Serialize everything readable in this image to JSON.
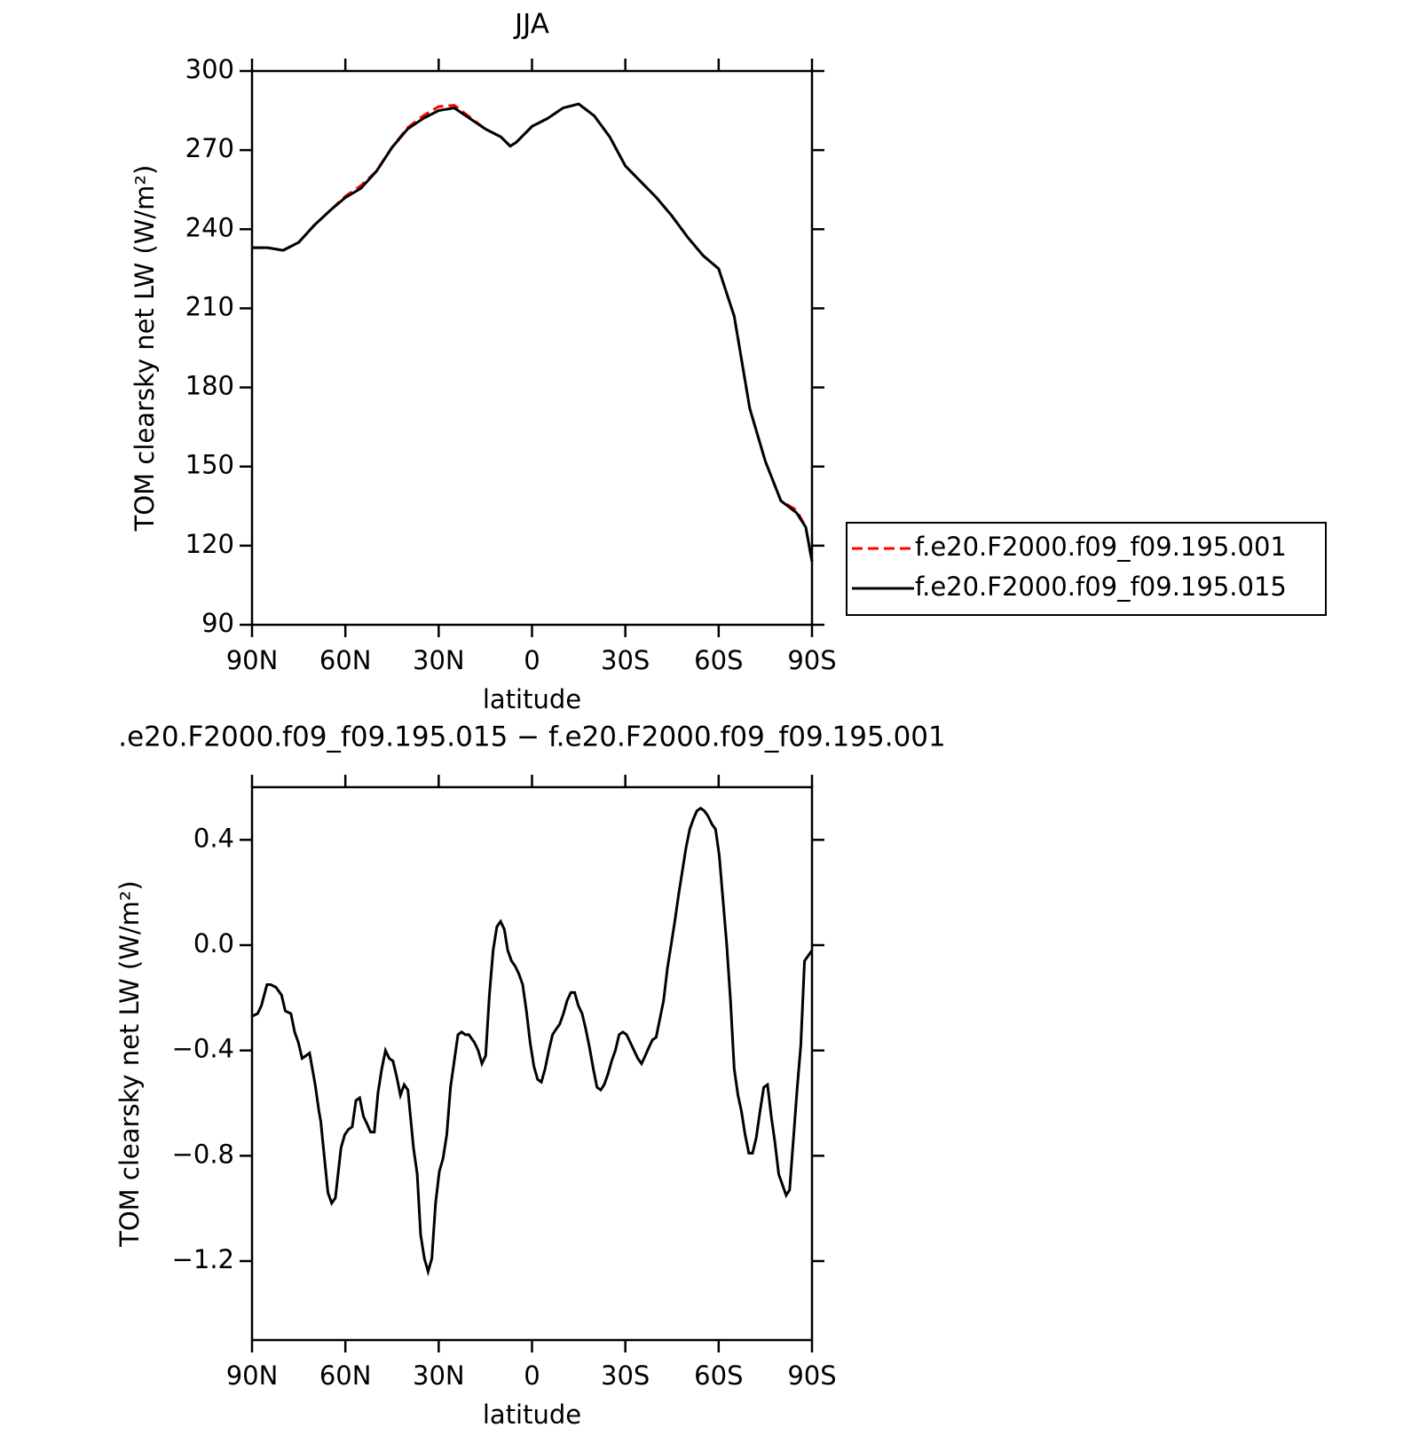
{
  "chart_data": [
    {
      "type": "line",
      "title": "JJA",
      "xlabel": "latitude",
      "ylabel": "TOM clearsky net LW (W/m²)",
      "x": [
        90,
        85,
        80,
        75,
        70,
        65,
        60,
        55,
        50,
        45,
        40,
        35,
        30,
        25,
        20,
        15,
        10,
        7,
        5,
        0,
        -5,
        -10,
        -15,
        -20,
        -25,
        -30,
        -35,
        -40,
        -45,
        -50,
        -55,
        -60,
        -65,
        -70,
        -75,
        -80,
        -85,
        -88,
        -90
      ],
      "series": [
        {
          "name": "f.e20.F2000.f09_f09.195.001",
          "color": "#ff0000",
          "style": "dashed",
          "values": [
            233,
            233,
            232,
            235,
            241.5,
            247,
            252.5,
            256.5,
            262,
            271,
            278.5,
            283,
            286.5,
            287,
            282.5,
            278,
            275,
            271.5,
            273,
            279,
            282,
            286,
            287.5,
            283,
            275,
            264,
            258,
            252,
            245,
            237,
            230,
            225,
            207,
            172,
            152,
            137,
            133.5,
            127,
            114
          ]
        },
        {
          "name": "f.e20.F2000.f09_f09.195.015",
          "color": "#000000",
          "style": "solid",
          "values": [
            233,
            233,
            232,
            235,
            241.5,
            247,
            252,
            255.5,
            262,
            271,
            278,
            282,
            285,
            286,
            282,
            278,
            275,
            271.5,
            273,
            279,
            282,
            286,
            287.5,
            283,
            275,
            264,
            258,
            252,
            245,
            237,
            230,
            225,
            207,
            172,
            152,
            137,
            132.5,
            127,
            114
          ]
        }
      ],
      "xlim": [
        90,
        -90
      ],
      "xticks": [
        {
          "value": 90,
          "label": "90N"
        },
        {
          "value": 60,
          "label": "60N"
        },
        {
          "value": 30,
          "label": "30N"
        },
        0,
        {
          "value": -30,
          "label": "30S"
        },
        {
          "value": -60,
          "label": "60S"
        },
        {
          "value": -90,
          "label": "90S"
        }
      ],
      "ylim": [
        90,
        300
      ],
      "yticks": [
        90,
        120,
        150,
        180,
        210,
        240,
        270,
        300
      ],
      "legend": "outside-right"
    },
    {
      "type": "line",
      "title": ".e20.F2000.f09_f09.195.015 − f.e20.F2000.f09_f09.195.001",
      "xlabel": "latitude",
      "ylabel": "TOM clearsky net LW (W/m²)",
      "x": [
        90,
        88.2,
        87.0,
        85.2,
        84.0,
        82.3,
        80.5,
        79.3,
        77.5,
        76.3,
        75.1,
        73.9,
        72.7,
        71.5,
        69.7,
        68.5,
        67.9,
        66.8,
        65.6,
        64.4,
        63.2,
        61.4,
        60.2,
        59.0,
        57.8,
        56.6,
        55.4,
        54.2,
        53.0,
        51.9,
        50.7,
        49.5,
        48.3,
        47.1,
        45.9,
        44.7,
        43.5,
        42.3,
        41.1,
        39.9,
        38.1,
        36.9,
        35.8,
        34.6,
        33.4,
        32.2,
        31.0,
        29.8,
        28.6,
        27.4,
        26.2,
        25.0,
        23.8,
        22.6,
        21.5,
        20.3,
        18.5,
        17.3,
        16.1,
        14.9,
        13.7,
        12.5,
        11.3,
        10.1,
        8.9,
        7.8,
        6.6,
        5.4,
        4.2,
        3.0,
        1.8,
        0.6,
        -0.6,
        -1.8,
        -3.0,
        -4.2,
        -5.4,
        -6.6,
        -7.7,
        -8.9,
        -10.1,
        -11.3,
        -12.5,
        -13.7,
        -14.9,
        -16.1,
        -17.3,
        -18.5,
        -19.7,
        -20.9,
        -22.1,
        -23.2,
        -24.4,
        -25.6,
        -26.8,
        -28.0,
        -29.2,
        -30.4,
        -31.6,
        -32.8,
        -34.0,
        -35.2,
        -36.4,
        -37.5,
        -38.7,
        -39.9,
        -41.1,
        -42.3,
        -43.5,
        -44.7,
        -45.9,
        -47.1,
        -48.3,
        -49.5,
        -50.7,
        -51.9,
        -53.0,
        -54.2,
        -55.4,
        -56.6,
        -57.8,
        -59.0,
        -60.2,
        -61.4,
        -62.6,
        -63.8,
        -65.0,
        -66.2,
        -67.3,
        -68.5,
        -69.7,
        -70.9,
        -72.1,
        -73.3,
        -74.5,
        -75.7,
        -76.9,
        -78.1,
        -79.3,
        -80.5,
        -81.7,
        -82.8,
        -84.0,
        -85.2,
        -86.4,
        -87.6,
        -88.8,
        -90.0
      ],
      "series": [
        {
          "color": "#000000",
          "style": "solid",
          "values": [
            -0.27,
            -0.26,
            -0.23,
            -0.15,
            -0.15,
            -0.16,
            -0.19,
            -0.25,
            -0.26,
            -0.33,
            -0.37,
            -0.43,
            -0.42,
            -0.41,
            -0.53,
            -0.63,
            -0.67,
            -0.8,
            -0.94,
            -0.98,
            -0.96,
            -0.77,
            -0.72,
            -0.7,
            -0.69,
            -0.59,
            -0.58,
            -0.65,
            -0.68,
            -0.71,
            -0.71,
            -0.56,
            -0.47,
            -0.4,
            -0.43,
            -0.44,
            -0.5,
            -0.57,
            -0.53,
            -0.55,
            -0.77,
            -0.87,
            -1.1,
            -1.19,
            -1.24,
            -1.19,
            -0.98,
            -0.86,
            -0.81,
            -0.72,
            -0.54,
            -0.44,
            -0.34,
            -0.33,
            -0.34,
            -0.34,
            -0.37,
            -0.4,
            -0.45,
            -0.42,
            -0.19,
            -0.02,
            0.07,
            0.09,
            0.06,
            -0.02,
            -0.06,
            -0.08,
            -0.11,
            -0.15,
            -0.25,
            -0.37,
            -0.46,
            -0.51,
            -0.52,
            -0.47,
            -0.4,
            -0.34,
            -0.32,
            -0.3,
            -0.26,
            -0.21,
            -0.18,
            -0.18,
            -0.23,
            -0.26,
            -0.32,
            -0.39,
            -0.47,
            -0.54,
            -0.55,
            -0.53,
            -0.49,
            -0.44,
            -0.4,
            -0.34,
            -0.33,
            -0.34,
            -0.37,
            -0.4,
            -0.43,
            -0.45,
            -0.42,
            -0.39,
            -0.36,
            -0.35,
            -0.28,
            -0.21,
            -0.09,
            0.0,
            0.09,
            0.19,
            0.28,
            0.37,
            0.44,
            0.48,
            0.51,
            0.52,
            0.51,
            0.49,
            0.46,
            0.44,
            0.34,
            0.17,
            0.0,
            -0.21,
            -0.47,
            -0.57,
            -0.63,
            -0.72,
            -0.79,
            -0.79,
            -0.73,
            -0.63,
            -0.54,
            -0.53,
            -0.65,
            -0.75,
            -0.87,
            -0.91,
            -0.95,
            -0.93,
            -0.74,
            -0.55,
            -0.38,
            -0.06,
            -0.04,
            -0.02
          ]
        }
      ],
      "xlim": [
        90,
        -90
      ],
      "xticks": [
        {
          "value": 90,
          "label": "90N"
        },
        {
          "value": 60,
          "label": "60N"
        },
        {
          "value": 30,
          "label": "30N"
        },
        0,
        {
          "value": -30,
          "label": "30S"
        },
        {
          "value": -60,
          "label": "60S"
        },
        {
          "value": -90,
          "label": "90S"
        }
      ],
      "ylim": [
        -1.5,
        0.6
      ],
      "yticks": [
        {
          "value": -1.2,
          "label": "−1.2"
        },
        {
          "value": -0.8,
          "label": "−0.8"
        },
        {
          "value": -0.4,
          "label": "−0.4"
        },
        {
          "value": 0,
          "label": "0.0"
        },
        0.4
      ]
    }
  ]
}
